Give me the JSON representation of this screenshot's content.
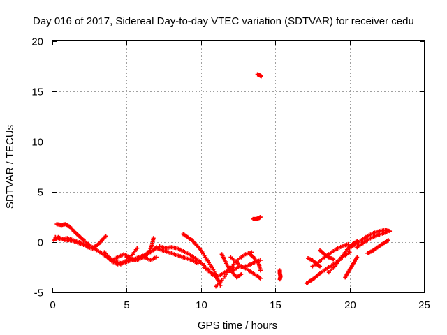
{
  "chart_data": {
    "type": "scatter",
    "title": "Day 016 of 2017, Sidereal Day-to-day VTEC variation (SDTVAR) for receiver cedu",
    "xlabel": "GPS time / hours",
    "ylabel": "SDTVAR / TECUs",
    "xlim": [
      0,
      25
    ],
    "ylim": [
      -5,
      20
    ],
    "xticks": [
      "0",
      "5",
      "10",
      "15",
      "20",
      "25"
    ],
    "yticks": [
      "-5",
      "0",
      "5",
      "10",
      "15",
      "20"
    ],
    "grid": true,
    "marker": "+",
    "series": [
      {
        "name": "SDTVAR",
        "color": "#ff0000",
        "tracks": [
          [
            [
              0.1,
              0.2
            ],
            [
              0.4,
              0.5
            ],
            [
              0.8,
              0.2
            ],
            [
              1.2,
              0.2
            ],
            [
              1.6,
              0.0
            ],
            [
              2.0,
              -0.2
            ],
            [
              2.4,
              -0.5
            ],
            [
              2.8,
              -0.7
            ]
          ],
          [
            [
              0.3,
              1.8
            ],
            [
              0.6,
              1.7
            ],
            [
              0.9,
              1.8
            ],
            [
              1.2,
              1.5
            ],
            [
              1.5,
              1.0
            ],
            [
              1.8,
              0.6
            ],
            [
              2.1,
              0.2
            ],
            [
              2.5,
              -0.3
            ],
            [
              2.9,
              -0.7
            ],
            [
              3.3,
              -1.1
            ],
            [
              3.7,
              -1.5
            ],
            [
              4.0,
              -1.9
            ],
            [
              4.4,
              -2.2
            ],
            [
              4.8,
              -2.0
            ]
          ],
          [
            [
              0.2,
              0.5
            ],
            [
              0.6,
              0.3
            ],
            [
              1.0,
              0.4
            ],
            [
              1.4,
              0.2
            ],
            [
              1.8,
              0.0
            ],
            [
              2.2,
              -0.2
            ],
            [
              2.6,
              -0.4
            ]
          ],
          [
            [
              2.8,
              -0.5
            ],
            [
              3.1,
              -0.2
            ],
            [
              3.4,
              0.3
            ],
            [
              3.6,
              0.6
            ]
          ],
          [
            [
              3.5,
              -1.0
            ],
            [
              3.9,
              -1.6
            ],
            [
              4.3,
              -2.0
            ],
            [
              4.7,
              -2.1
            ],
            [
              5.1,
              -1.9
            ],
            [
              5.5,
              -1.7
            ],
            [
              5.9,
              -1.5
            ]
          ],
          [
            [
              4.0,
              -1.8
            ],
            [
              4.4,
              -1.5
            ],
            [
              4.8,
              -1.2
            ],
            [
              5.2,
              -1.5
            ],
            [
              5.6,
              -1.8
            ],
            [
              6.0,
              -1.6
            ],
            [
              6.4,
              -1.2
            ],
            [
              6.8,
              -0.8
            ],
            [
              7.0,
              -0.5
            ]
          ],
          [
            [
              4.2,
              -2.0
            ],
            [
              4.6,
              -2.2
            ],
            [
              5.0,
              -1.8
            ],
            [
              5.4,
              -1.2
            ],
            [
              5.7,
              -0.6
            ]
          ],
          [
            [
              5.0,
              -1.5
            ],
            [
              5.4,
              -1.8
            ],
            [
              5.8,
              -1.5
            ],
            [
              6.2,
              -1.3
            ],
            [
              6.5,
              -1.0
            ],
            [
              6.7,
              -0.3
            ],
            [
              6.8,
              0.4
            ]
          ],
          [
            [
              6.2,
              -1.5
            ],
            [
              6.6,
              -1.8
            ],
            [
              7.0,
              -1.5
            ]
          ],
          [
            [
              7.0,
              -0.6
            ],
            [
              7.4,
              -0.8
            ],
            [
              7.8,
              -1.0
            ],
            [
              8.2,
              -1.2
            ],
            [
              8.6,
              -1.4
            ],
            [
              9.0,
              -1.6
            ],
            [
              9.4,
              -1.8
            ],
            [
              9.8,
              -2.1
            ]
          ],
          [
            [
              7.2,
              -0.4
            ],
            [
              7.6,
              -0.6
            ],
            [
              8.0,
              -0.5
            ],
            [
              8.4,
              -0.6
            ],
            [
              8.8,
              -0.9
            ],
            [
              9.2,
              -1.2
            ],
            [
              9.6,
              -1.6
            ],
            [
              10.0,
              -2.0
            ],
            [
              10.4,
              -2.6
            ],
            [
              10.8,
              -3.2
            ],
            [
              11.2,
              -3.8
            ]
          ],
          [
            [
              8.8,
              0.8
            ],
            [
              9.1,
              0.5
            ],
            [
              9.4,
              0.2
            ],
            [
              9.7,
              -0.3
            ],
            [
              10.0,
              -0.8
            ],
            [
              10.3,
              -1.5
            ],
            [
              10.6,
              -2.2
            ],
            [
              10.9,
              -2.9
            ],
            [
              11.1,
              -3.6
            ],
            [
              11.3,
              -4.3
            ]
          ],
          [
            [
              10.2,
              -2.5
            ],
            [
              10.6,
              -3.0
            ],
            [
              11.0,
              -3.5
            ],
            [
              11.4,
              -3.2
            ],
            [
              11.8,
              -2.8
            ],
            [
              12.2,
              -2.5
            ]
          ],
          [
            [
              11.0,
              -4.4
            ],
            [
              11.4,
              -3.8
            ],
            [
              11.8,
              -3.0
            ],
            [
              12.2,
              -2.2
            ],
            [
              12.6,
              -1.6
            ],
            [
              13.0,
              -1.2
            ],
            [
              13.4,
              -1.0
            ]
          ],
          [
            [
              11.4,
              -1.2
            ],
            [
              11.6,
              -1.8
            ],
            [
              11.8,
              -2.4
            ],
            [
              12.1,
              -3.0
            ],
            [
              12.4,
              -3.5
            ],
            [
              12.7,
              -3.2
            ]
          ],
          [
            [
              12.0,
              -1.5
            ],
            [
              12.4,
              -2.0
            ],
            [
              12.8,
              -2.5
            ],
            [
              13.2,
              -2.3
            ],
            [
              13.6,
              -2.0
            ],
            [
              14.0,
              -1.8
            ]
          ],
          [
            [
              12.2,
              -2.8
            ],
            [
              12.6,
              -2.4
            ],
            [
              13.0,
              -2.6
            ],
            [
              13.4,
              -3.0
            ],
            [
              13.8,
              -3.4
            ],
            [
              14.0,
              -3.6
            ]
          ],
          [
            [
              13.3,
              -1.2
            ],
            [
              13.6,
              -1.6
            ],
            [
              13.9,
              -2.2
            ],
            [
              14.0,
              -2.8
            ]
          ],
          [
            [
              13.5,
              2.3
            ],
            [
              13.7,
              2.3
            ],
            [
              13.9,
              2.4
            ],
            [
              14.0,
              2.5
            ]
          ],
          [
            [
              13.8,
              16.7
            ],
            [
              13.95,
              16.6
            ],
            [
              14.05,
              16.5
            ]
          ],
          [
            [
              15.3,
              -2.8
            ],
            [
              15.3,
              -3.1
            ],
            [
              15.35,
              -3.4
            ],
            [
              15.3,
              -3.7
            ]
          ],
          [
            [
              17.1,
              -4.1
            ],
            [
              17.4,
              -3.8
            ],
            [
              17.7,
              -3.5
            ],
            [
              18.0,
              -3.1
            ],
            [
              18.4,
              -2.7
            ],
            [
              18.8,
              -2.3
            ],
            [
              19.2,
              -1.9
            ],
            [
              19.6,
              -1.4
            ],
            [
              20.0,
              -1.0
            ]
          ],
          [
            [
              17.2,
              -1.6
            ],
            [
              17.5,
              -1.8
            ],
            [
              17.8,
              -2.2
            ],
            [
              18.0,
              -2.4
            ]
          ],
          [
            [
              17.5,
              -2.4
            ],
            [
              17.9,
              -2.0
            ],
            [
              18.3,
              -1.5
            ],
            [
              18.7,
              -1.1
            ],
            [
              19.1,
              -0.7
            ],
            [
              19.5,
              -0.4
            ],
            [
              19.9,
              -0.2
            ]
          ],
          [
            [
              18.0,
              -0.8
            ],
            [
              18.3,
              -1.2
            ],
            [
              18.6,
              -1.5
            ],
            [
              18.9,
              -1.7
            ]
          ],
          [
            [
              18.6,
              -3.0
            ],
            [
              19.0,
              -2.4
            ],
            [
              19.3,
              -1.8
            ],
            [
              19.6,
              -1.2
            ],
            [
              19.9,
              -0.6
            ],
            [
              20.2,
              -0.2
            ],
            [
              20.5,
              0.1
            ]
          ],
          [
            [
              19.7,
              -3.5
            ],
            [
              19.9,
              -3.0
            ],
            [
              20.1,
              -2.5
            ],
            [
              20.3,
              -2.0
            ],
            [
              20.5,
              -1.5
            ]
          ],
          [
            [
              20.0,
              -0.6
            ],
            [
              20.4,
              -0.2
            ],
            [
              20.8,
              0.2
            ],
            [
              21.2,
              0.6
            ],
            [
              21.6,
              0.9
            ],
            [
              22.0,
              1.1
            ],
            [
              22.4,
              1.2
            ],
            [
              22.7,
              1.1
            ]
          ],
          [
            [
              20.5,
              -0.5
            ],
            [
              20.9,
              -0.1
            ],
            [
              21.3,
              0.3
            ],
            [
              21.7,
              0.6
            ],
            [
              22.1,
              0.8
            ],
            [
              22.5,
              1.0
            ]
          ],
          [
            [
              21.2,
              -1.1
            ],
            [
              21.5,
              -0.9
            ],
            [
              21.8,
              -0.6
            ],
            [
              22.1,
              -0.3
            ],
            [
              22.4,
              0.0
            ],
            [
              22.6,
              0.2
            ]
          ]
        ]
      }
    ]
  }
}
